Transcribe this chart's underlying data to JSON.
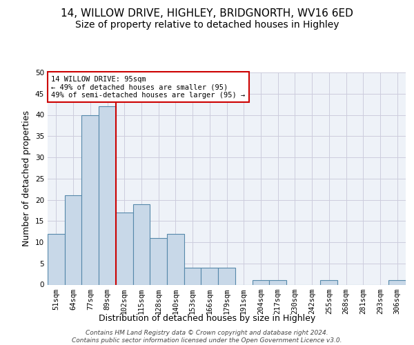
{
  "title_line1": "14, WILLOW DRIVE, HIGHLEY, BRIDGNORTH, WV16 6ED",
  "title_line2": "Size of property relative to detached houses in Highley",
  "xlabel": "Distribution of detached houses by size in Highley",
  "ylabel": "Number of detached properties",
  "bar_values": [
    12,
    21,
    40,
    42,
    17,
    19,
    11,
    12,
    4,
    4,
    4,
    0,
    1,
    1,
    0,
    0,
    1,
    0,
    0,
    0,
    1
  ],
  "bar_labels": [
    "51sqm",
    "64sqm",
    "77sqm",
    "89sqm",
    "102sqm",
    "115sqm",
    "128sqm",
    "140sqm",
    "153sqm",
    "166sqm",
    "179sqm",
    "191sqm",
    "204sqm",
    "217sqm",
    "230sqm",
    "242sqm",
    "255sqm",
    "268sqm",
    "281sqm",
    "293sqm",
    "306sqm"
  ],
  "bar_color": "#c8d8e8",
  "bar_edge_color": "#5588aa",
  "grid_color": "#ccccdd",
  "background_color": "#eef2f8",
  "red_line_x": 3.5,
  "red_line_color": "#cc0000",
  "annotation_title": "14 WILLOW DRIVE: 95sqm",
  "annotation_line1": "← 49% of detached houses are smaller (95)",
  "annotation_line2": "49% of semi-detached houses are larger (95) →",
  "annotation_box_color": "#ffffff",
  "annotation_border_color": "#cc0000",
  "ylim": [
    0,
    50
  ],
  "yticks": [
    0,
    5,
    10,
    15,
    20,
    25,
    30,
    35,
    40,
    45,
    50
  ],
  "footer_line1": "Contains HM Land Registry data © Crown copyright and database right 2024.",
  "footer_line2": "Contains public sector information licensed under the Open Government Licence v3.0.",
  "title_fontsize": 11,
  "subtitle_fontsize": 10,
  "tick_fontsize": 7.5,
  "ylabel_fontsize": 9,
  "annotation_fontsize": 7.5,
  "footer_fontsize": 6.5
}
